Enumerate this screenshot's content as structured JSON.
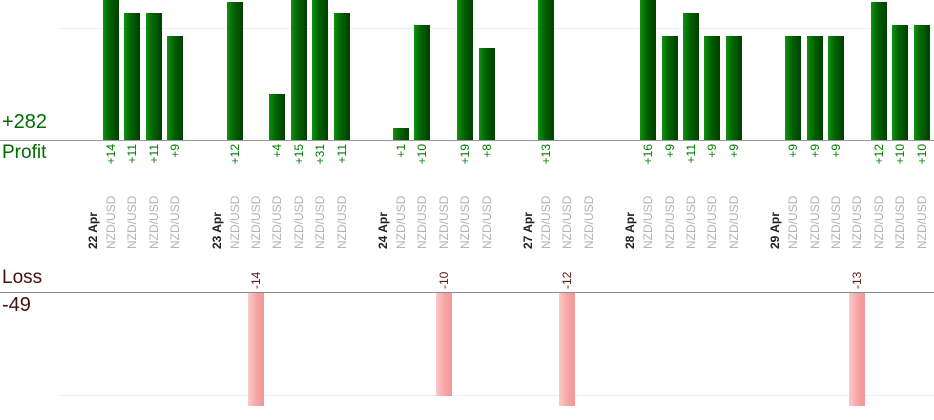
{
  "chart_data": {
    "type": "bar",
    "title": "",
    "description": "Per-trade profit and loss bars grouped by trading day; profits plotted upward from the Profit axis, losses plotted downward from the Loss axis",
    "symbol": "NZD/USD",
    "profit": {
      "axis_label": "Profit",
      "total_label": "+282",
      "total": 282
    },
    "loss": {
      "axis_label": "Loss",
      "total_label": "-49",
      "total": -49
    },
    "layout": {
      "grid": "one faint gridline above profit axis and one below loss axis",
      "bars_clipped_by_viewport": true,
      "legend": "none"
    },
    "groups": [
      {
        "date": "22 Apr",
        "trades": [
          {
            "symbol": "NZD/USD",
            "value": 14,
            "label": "+14"
          },
          {
            "symbol": "NZD/USD",
            "value": 11,
            "label": "+11"
          },
          {
            "symbol": "NZD/USD",
            "value": 11,
            "label": "+11"
          },
          {
            "symbol": "NZD/USD",
            "value": 9,
            "label": "+9"
          }
        ]
      },
      {
        "date": "23 Apr",
        "trades": [
          {
            "symbol": "NZD/USD",
            "value": 12,
            "label": "+12"
          },
          {
            "symbol": "NZD/USD",
            "value": -14,
            "label": "-14"
          },
          {
            "symbol": "NZD/USD",
            "value": 4,
            "label": "+4"
          },
          {
            "symbol": "NZD/USD",
            "value": 15,
            "label": "+15"
          },
          {
            "symbol": "NZD/USD",
            "value": 31,
            "label": "+31"
          },
          {
            "symbol": "NZD/USD",
            "value": 11,
            "label": "+11"
          }
        ]
      },
      {
        "date": "24 Apr",
        "trades": [
          {
            "symbol": "NZD/USD",
            "value": 1,
            "label": "+1"
          },
          {
            "symbol": "NZD/USD",
            "value": 10,
            "label": "+10"
          },
          {
            "symbol": "NZD/USD",
            "value": -10,
            "label": "-10"
          },
          {
            "symbol": "NZD/USD",
            "value": 19,
            "label": "+19"
          },
          {
            "symbol": "NZD/USD",
            "value": 8,
            "label": "+8"
          }
        ]
      },
      {
        "date": "27 Apr",
        "trades": [
          {
            "symbol": "NZD/USD",
            "value": 13,
            "label": "+13"
          },
          {
            "symbol": "NZD/USD",
            "value": -12,
            "label": "-12"
          },
          {
            "symbol": "NZD/USD",
            "value": 0,
            "label": ""
          }
        ]
      },
      {
        "date": "28 Apr",
        "trades": [
          {
            "symbol": "NZD/USD",
            "value": 16,
            "label": "+16"
          },
          {
            "symbol": "NZD/USD",
            "value": 9,
            "label": "+9"
          },
          {
            "symbol": "NZD/USD",
            "value": 11,
            "label": "+11"
          },
          {
            "symbol": "NZD/USD",
            "value": 9,
            "label": "+9"
          },
          {
            "symbol": "NZD/USD",
            "value": 9,
            "label": "+9"
          }
        ]
      },
      {
        "date": "29 Apr",
        "trades": [
          {
            "symbol": "NZD/USD",
            "value": 9,
            "label": "+9"
          },
          {
            "symbol": "NZD/USD",
            "value": 9,
            "label": "+9"
          },
          {
            "symbol": "NZD/USD",
            "value": 9,
            "label": "+9"
          },
          {
            "symbol": "NZD/USD",
            "value": -13,
            "label": "-13"
          },
          {
            "symbol": "NZD/USD",
            "value": 12,
            "label": "+12"
          },
          {
            "symbol": "NZD/USD",
            "value": 10,
            "label": "+10"
          },
          {
            "symbol": "NZD/USD",
            "value": 10,
            "label": "+10"
          }
        ]
      }
    ],
    "colors": {
      "profit_text": "#006b00",
      "profit_value_text": "#007d00",
      "loss_text": "#451010",
      "loss_value_text": "#5f1b1b",
      "symbol_text": "#b3b3b3",
      "date_text": "#222222",
      "profit_bar_left": "#119111",
      "profit_bar_mid": "#016101",
      "profit_bar_right": "#003e00",
      "loss_bar_left": "#fccaca",
      "loss_bar_mid": "#f4a2a2",
      "loss_bar_right": "#f09898",
      "profit_axis_line": "#999999",
      "loss_axis_line": "#8c8c8c",
      "gridline": "#ededed"
    }
  }
}
